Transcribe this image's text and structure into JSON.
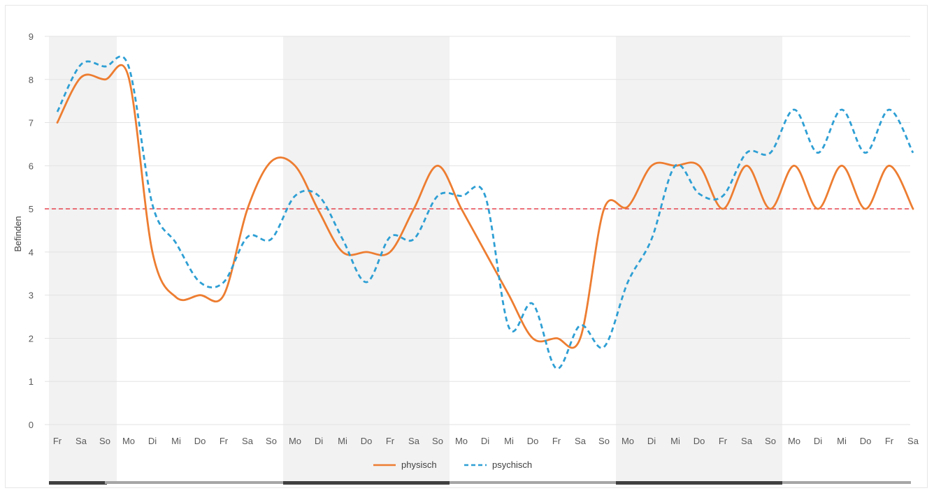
{
  "chart_data": {
    "type": "line",
    "title": "",
    "xlabel": "",
    "ylabel": "Befinden",
    "ylim": [
      0,
      9
    ],
    "yticks": [
      "0",
      "1",
      "2",
      "3",
      "4",
      "5",
      "6",
      "7",
      "8",
      "9"
    ],
    "grid": true,
    "legend_position": "bottom",
    "categories": [
      "Fr",
      "Sa",
      "So",
      "Mo",
      "Di",
      "Mi",
      "Do",
      "Fr",
      "Sa",
      "So",
      "Mo",
      "Di",
      "Mi",
      "Do",
      "Fr",
      "Sa",
      "So",
      "Mo",
      "Di",
      "Mi",
      "Do",
      "Fr",
      "Sa",
      "So",
      "Mo",
      "Di",
      "Mi",
      "Do",
      "Fr",
      "Sa",
      "So",
      "Mo",
      "Di",
      "Mi",
      "Do",
      "Fr",
      "Sa"
    ],
    "series": [
      {
        "name": "physisch",
        "color": "#ed7d31",
        "style": "solid",
        "values": [
          7,
          8.05,
          8,
          8.05,
          4,
          2.95,
          3,
          3,
          5,
          6.1,
          6,
          4.95,
          4,
          4,
          4,
          5,
          6,
          5,
          4,
          3,
          2,
          2,
          2,
          5,
          5.05,
          6,
          6,
          6,
          5,
          6,
          5,
          6,
          5,
          6,
          5,
          6,
          5
        ]
      },
      {
        "name": "psychisch",
        "color": "#2e9fd4",
        "style": "dashed",
        "values": [
          7.25,
          8.35,
          8.3,
          8.3,
          5.1,
          4.2,
          3.3,
          3.3,
          4.35,
          4.3,
          5.3,
          5.3,
          4.3,
          3.3,
          4.35,
          4.3,
          5.3,
          5.3,
          5.3,
          2.25,
          2.8,
          1.3,
          2.3,
          1.8,
          3.3,
          4.3,
          6,
          5.35,
          5.3,
          6.3,
          6.3,
          7.3,
          6.3,
          7.3,
          6.3,
          7.3,
          6.3
        ]
      }
    ],
    "reference_line": {
      "y": 5,
      "color": "#e8515b",
      "style": "dashed"
    },
    "shaded_bands": [
      {
        "from": 0,
        "to": 2,
        "color": "#f2f2f2"
      },
      {
        "from": 9.5,
        "to": 16.5,
        "color": "#f2f2f2"
      },
      {
        "from": 23.5,
        "to": 30.5,
        "color": "#f2f2f2"
      }
    ],
    "bottom_bar_segments": [
      {
        "from": 0,
        "to": 2,
        "color": "#404040"
      },
      {
        "from": 2,
        "to": 9.5,
        "color": "#a6a6a6"
      },
      {
        "from": 9.5,
        "to": 16.5,
        "color": "#404040"
      },
      {
        "from": 16.5,
        "to": 23.5,
        "color": "#a6a6a6"
      },
      {
        "from": 23.5,
        "to": 30.5,
        "color": "#404040"
      },
      {
        "from": 30.5,
        "to": 36,
        "color": "#a6a6a6"
      }
    ]
  }
}
